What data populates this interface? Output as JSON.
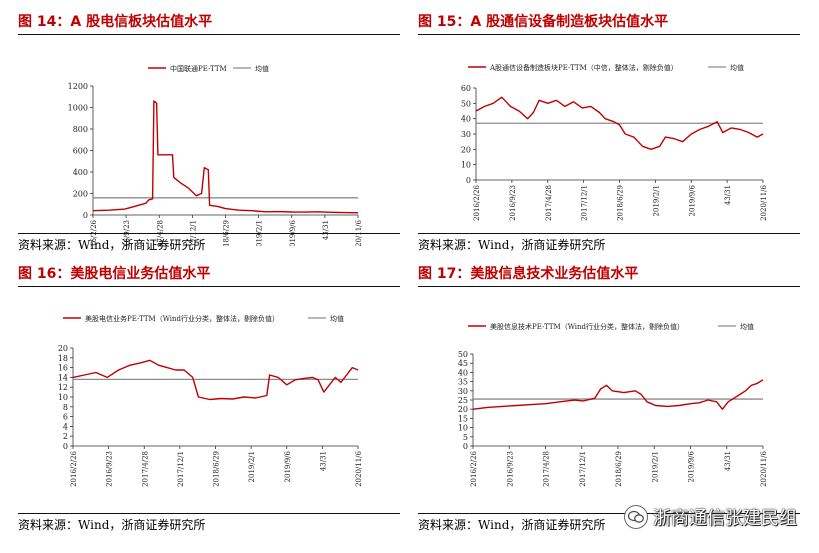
{
  "panels": [
    {
      "title": "图 14：A 股电信板块估值水平",
      "source": "资料来源：Wind，浙商证券研究所",
      "chart_data": {
        "type": "line",
        "legend": [
          {
            "name": "中国联通PE-TTM",
            "color": "#c00000"
          },
          {
            "name": "均值",
            "color": "#8c8c8c"
          }
        ],
        "yticks": [
          0,
          200,
          400,
          600,
          800,
          1000,
          1200
        ],
        "ylim": [
          0,
          1200
        ],
        "xticks": [
          "2016/2/26",
          "2016/9/23",
          "2017/4/28",
          "2017/12/1",
          "2018/6/29",
          "2019/2/1",
          "2019/9/6",
          "43/31",
          "2020/11/6"
        ],
        "mean": 160,
        "series": [
          {
            "name": "中国联通PE-TTM",
            "values": [
              [
                0,
                40
              ],
              [
                0.06,
                45
              ],
              [
                0.12,
                55
              ],
              [
                0.2,
                110
              ],
              [
                0.21,
                140
              ],
              [
                0.225,
                150
              ],
              [
                0.23,
                1060
              ],
              [
                0.24,
                1040
              ],
              [
                0.245,
                560
              ],
              [
                0.3,
                560
              ],
              [
                0.305,
                350
              ],
              [
                0.33,
                300
              ],
              [
                0.36,
                250
              ],
              [
                0.39,
                180
              ],
              [
                0.41,
                200
              ],
              [
                0.42,
                440
              ],
              [
                0.435,
                420
              ],
              [
                0.44,
                90
              ],
              [
                0.47,
                80
              ],
              [
                0.5,
                60
              ],
              [
                0.55,
                45
              ],
              [
                0.6,
                40
              ],
              [
                0.65,
                30
              ],
              [
                0.7,
                32
              ],
              [
                0.75,
                28
              ],
              [
                0.8,
                27
              ],
              [
                0.85,
                30
              ],
              [
                0.9,
                25
              ],
              [
                0.95,
                22
              ],
              [
                1,
                20
              ]
            ]
          }
        ]
      }
    },
    {
      "title": "图 15：A 股通信设备制造板块估值水平",
      "source": "资料来源：Wind，浙商证券研究所",
      "chart_data": {
        "type": "line",
        "legend": [
          {
            "name": "A股通信设备制造板块PE-TTM（中信，整体法，剔除负值）",
            "color": "#c00000"
          },
          {
            "name": "均值",
            "color": "#8c8c8c"
          }
        ],
        "yticks": [
          0,
          10,
          20,
          30,
          40,
          50,
          60
        ],
        "ylim": [
          0,
          60
        ],
        "xticks": [
          "2016/2/26",
          "2016/9/23",
          "2017/4/28",
          "2017/12/1",
          "2018/6/29",
          "2019/2/1",
          "2019/9/6",
          "43/31",
          "2020/11/6"
        ],
        "mean": 37,
        "series": [
          {
            "name": "A股通信设备制造板块PE-TTM（中信，整体法，剔除负值）",
            "values": [
              [
                0,
                45
              ],
              [
                0.03,
                48
              ],
              [
                0.06,
                50
              ],
              [
                0.09,
                54
              ],
              [
                0.12,
                48
              ],
              [
                0.15,
                45
              ],
              [
                0.18,
                40
              ],
              [
                0.2,
                44
              ],
              [
                0.22,
                52
              ],
              [
                0.25,
                50
              ],
              [
                0.28,
                52
              ],
              [
                0.31,
                48
              ],
              [
                0.34,
                51
              ],
              [
                0.37,
                47
              ],
              [
                0.4,
                48
              ],
              [
                0.43,
                44
              ],
              [
                0.45,
                40
              ],
              [
                0.48,
                38
              ],
              [
                0.5,
                36
              ],
              [
                0.52,
                30
              ],
              [
                0.55,
                28
              ],
              [
                0.58,
                22
              ],
              [
                0.61,
                20
              ],
              [
                0.64,
                22
              ],
              [
                0.66,
                28
              ],
              [
                0.69,
                27
              ],
              [
                0.72,
                25
              ],
              [
                0.75,
                30
              ],
              [
                0.78,
                33
              ],
              [
                0.81,
                35
              ],
              [
                0.84,
                38
              ],
              [
                0.86,
                31
              ],
              [
                0.89,
                34
              ],
              [
                0.92,
                33
              ],
              [
                0.95,
                31
              ],
              [
                0.98,
                28
              ],
              [
                1,
                30
              ]
            ]
          }
        ]
      }
    },
    {
      "title": "图 16：美股电信业务估值水平",
      "source": "资料来源：Wind，浙商证券研究所",
      "chart_data": {
        "type": "line",
        "legend": [
          {
            "name": "美股电信业务PE-TTM（Wind行业分类，整体法，剔除负值）",
            "color": "#c00000"
          },
          {
            "name": "均值",
            "color": "#8c8c8c"
          }
        ],
        "yticks": [
          0,
          2,
          4,
          6,
          8,
          10,
          12,
          14,
          16,
          18,
          20
        ],
        "ylim": [
          0,
          20
        ],
        "xticks": [
          "2016/2/26",
          "2016/9/23",
          "2017/4/28",
          "2017/12/1",
          "2018/6/29",
          "2019/2/1",
          "2019/9/6",
          "43/31",
          "2020/11/6"
        ],
        "mean": 13.6,
        "series": [
          {
            "name": "美股电信业务PE-TTM（Wind行业分类，整体法，剔除负值）",
            "values": [
              [
                0,
                14
              ],
              [
                0.04,
                14.5
              ],
              [
                0.08,
                15
              ],
              [
                0.12,
                14
              ],
              [
                0.16,
                15.5
              ],
              [
                0.2,
                16.5
              ],
              [
                0.24,
                17
              ],
              [
                0.27,
                17.5
              ],
              [
                0.3,
                16.5
              ],
              [
                0.33,
                16
              ],
              [
                0.36,
                15.5
              ],
              [
                0.39,
                15.5
              ],
              [
                0.42,
                14
              ],
              [
                0.44,
                10
              ],
              [
                0.48,
                9.5
              ],
              [
                0.52,
                9.7
              ],
              [
                0.56,
                9.6
              ],
              [
                0.6,
                10
              ],
              [
                0.64,
                9.8
              ],
              [
                0.68,
                10.3
              ],
              [
                0.69,
                14.5
              ],
              [
                0.72,
                14
              ],
              [
                0.75,
                12.5
              ],
              [
                0.78,
                13.5
              ],
              [
                0.81,
                13.8
              ],
              [
                0.84,
                14
              ],
              [
                0.86,
                13.5
              ],
              [
                0.88,
                11
              ],
              [
                0.9,
                12.5
              ],
              [
                0.92,
                14
              ],
              [
                0.94,
                13
              ],
              [
                0.96,
                14.5
              ],
              [
                0.98,
                16
              ],
              [
                1,
                15.5
              ]
            ]
          }
        ]
      }
    },
    {
      "title": "图 17：美股信息技术业务估值水平",
      "source": "资料来源：Wind，浙商证券研究所",
      "chart_data": {
        "type": "line",
        "legend": [
          {
            "name": "美股信息技术PE-TTM（Wind行业分类，整体法，剔除负值）",
            "color": "#c00000"
          },
          {
            "name": "均值",
            "color": "#8c8c8c"
          }
        ],
        "yticks": [
          0,
          5,
          10,
          15,
          20,
          25,
          30,
          35,
          40,
          45,
          50
        ],
        "ylim": [
          0,
          50
        ],
        "xticks": [
          "2016/2/26",
          "2016/9/23",
          "2017/4/28",
          "2017/12/1",
          "2018/6/29",
          "2019/2/1",
          "2019/9/6",
          "43/31",
          "2020/11/6"
        ],
        "mean": 25.5,
        "series": [
          {
            "name": "美股信息技术PE-TTM（Wind行业分类，整体法，剔除负值）",
            "values": [
              [
                0,
                20
              ],
              [
                0.05,
                21
              ],
              [
                0.1,
                21.5
              ],
              [
                0.15,
                22
              ],
              [
                0.2,
                22.5
              ],
              [
                0.25,
                23
              ],
              [
                0.3,
                24
              ],
              [
                0.35,
                25
              ],
              [
                0.38,
                24.5
              ],
              [
                0.42,
                26
              ],
              [
                0.44,
                31
              ],
              [
                0.46,
                33
              ],
              [
                0.48,
                30
              ],
              [
                0.52,
                29
              ],
              [
                0.56,
                30
              ],
              [
                0.58,
                28
              ],
              [
                0.6,
                24
              ],
              [
                0.63,
                22
              ],
              [
                0.67,
                21.5
              ],
              [
                0.71,
                22
              ],
              [
                0.75,
                23
              ],
              [
                0.78,
                23.5
              ],
              [
                0.81,
                25
              ],
              [
                0.84,
                24
              ],
              [
                0.86,
                20
              ],
              [
                0.88,
                24
              ],
              [
                0.9,
                26
              ],
              [
                0.92,
                28
              ],
              [
                0.94,
                30
              ],
              [
                0.96,
                33
              ],
              [
                0.98,
                34
              ],
              [
                1,
                36
              ]
            ]
          }
        ]
      }
    }
  ],
  "watermark": {
    "text": "浙商通信张建民组"
  }
}
